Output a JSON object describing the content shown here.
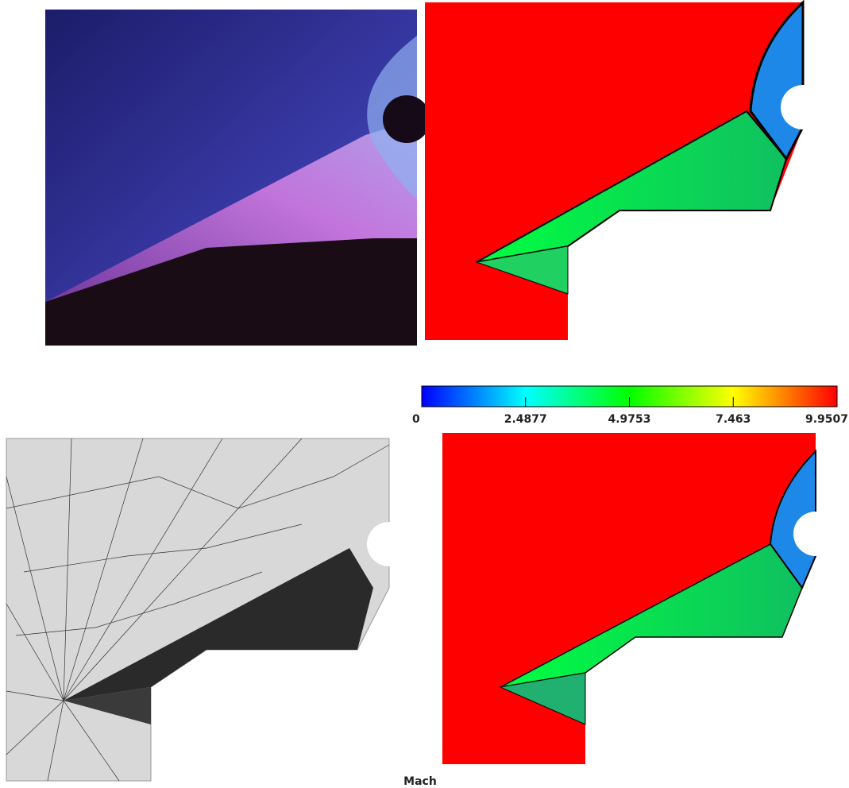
{
  "colorbar": {
    "label": "Mach",
    "lim": [
      0,
      9.9507
    ],
    "ticks": [
      0,
      2.4877,
      4.9753,
      7.463,
      9.9507
    ]
  }
}
